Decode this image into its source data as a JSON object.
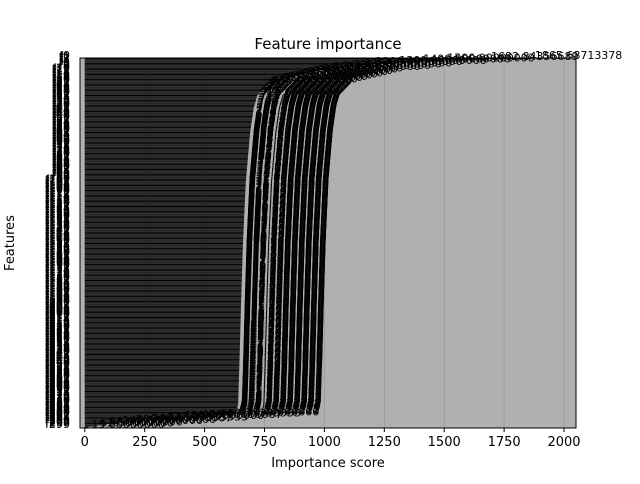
{
  "chart_data": {
    "type": "bar",
    "orientation": "horizontal",
    "title": "Feature importance",
    "xlabel": "Importance score",
    "ylabel": "Features",
    "xlim": [
      -20,
      2050
    ],
    "x_ticks": [
      0,
      250,
      500,
      750,
      1000,
      1250,
      1500,
      1750,
      2000
    ],
    "grid": true,
    "bar_color": "#000000",
    "plot_background": "#b0b0b0",
    "feature_count": 300,
    "max_value": 1865.68713378,
    "value_label_snippets": [
      "1865.68713378",
      "...28857421875",
      "...7332483"
    ],
    "values_shape": {
      "knots": [
        [
          0,
          1865.68713378
        ],
        [
          2,
          1500
        ],
        [
          5,
          1200
        ],
        [
          10,
          980
        ],
        [
          20,
          770
        ],
        [
          30,
          720
        ],
        [
          40,
          705
        ],
        [
          60,
          690
        ],
        [
          100,
          672
        ],
        [
          150,
          660
        ],
        [
          200,
          652
        ],
        [
          250,
          645
        ],
        [
          280,
          640
        ],
        [
          289,
          630
        ],
        [
          292,
          400
        ],
        [
          295,
          200
        ],
        [
          297,
          90
        ],
        [
          299,
          15
        ]
      ]
    }
  },
  "colors": {
    "bar": "#000000",
    "plot_bg": "#b0b0b0",
    "axis": "#000000",
    "figure_bg": "#ffffff"
  }
}
